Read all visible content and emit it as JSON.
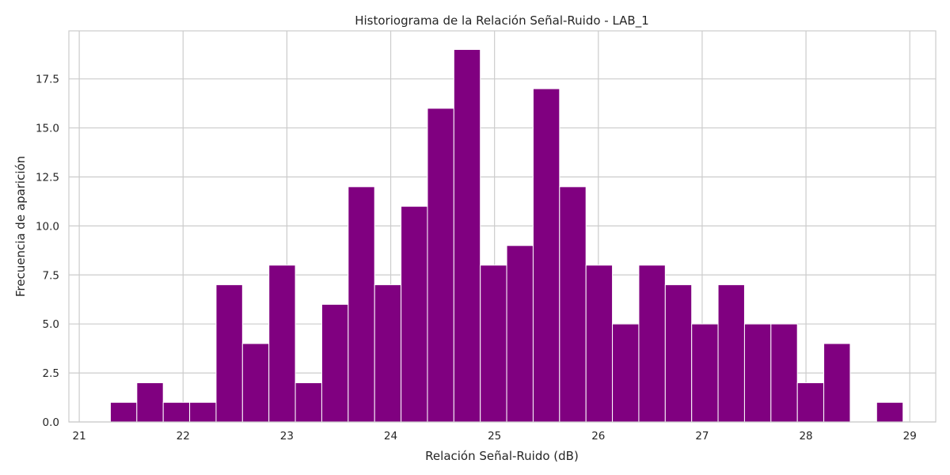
{
  "chart_data": {
    "type": "bar",
    "title": "Historiograma de la Relación Señal-Ruido - LAB_1",
    "xlabel": "Relación Señal-Ruido (dB)",
    "ylabel": "Frecuencia de aparición",
    "xlim": [
      20.9,
      29.25
    ],
    "ylim": [
      0,
      19.95
    ],
    "x_ticks": [
      {
        "value": 21,
        "label": "21"
      },
      {
        "value": 22,
        "label": "22"
      },
      {
        "value": 23,
        "label": "23"
      },
      {
        "value": 24,
        "label": "24"
      },
      {
        "value": 25,
        "label": "25"
      },
      {
        "value": 26,
        "label": "26"
      },
      {
        "value": 27,
        "label": "27"
      },
      {
        "value": 28,
        "label": "28"
      },
      {
        "value": 29,
        "label": "29"
      }
    ],
    "y_ticks": [
      {
        "value": 0,
        "label": "0.0"
      },
      {
        "value": 2.5,
        "label": "2.5"
      },
      {
        "value": 5,
        "label": "5.0"
      },
      {
        "value": 7.5,
        "label": "7.5"
      },
      {
        "value": 10,
        "label": "10.0"
      },
      {
        "value": 12.5,
        "label": "12.5"
      },
      {
        "value": 15,
        "label": "15.0"
      },
      {
        "value": 17.5,
        "label": "17.5"
      }
    ],
    "bin_start": 21.3,
    "bin_width": 0.2545,
    "values": [
      1,
      2,
      1,
      1,
      7,
      4,
      8,
      2,
      6,
      12,
      7,
      11,
      16,
      19,
      8,
      9,
      17,
      12,
      8,
      5,
      8,
      7,
      5,
      7,
      5,
      5,
      2,
      4,
      0,
      1
    ],
    "bar_color": "#800080",
    "grid": true
  }
}
